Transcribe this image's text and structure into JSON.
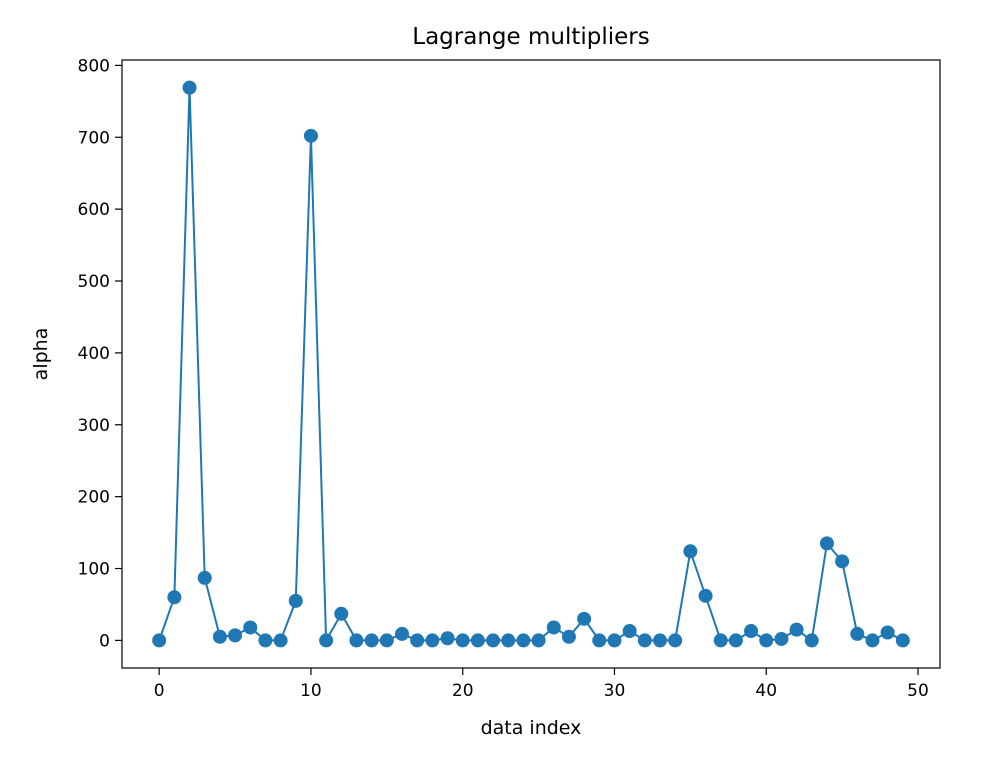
{
  "chart_data": {
    "type": "line",
    "title": "Lagrange multipliers",
    "xlabel": "data index",
    "ylabel": "alpha",
    "xlim": [
      -2.45,
      51.45
    ],
    "ylim": [
      -38.4,
      807.5
    ],
    "xticks": [
      0,
      10,
      20,
      30,
      40,
      50
    ],
    "yticks": [
      0,
      100,
      200,
      300,
      400,
      500,
      600,
      700,
      800
    ],
    "grid": false,
    "legend": "none",
    "series_color": "#1f77b4",
    "marker": "circle",
    "x": [
      0,
      1,
      2,
      3,
      4,
      5,
      6,
      7,
      8,
      9,
      10,
      11,
      12,
      13,
      14,
      15,
      16,
      17,
      18,
      19,
      20,
      21,
      22,
      23,
      24,
      25,
      26,
      27,
      28,
      29,
      30,
      31,
      32,
      33,
      34,
      35,
      36,
      37,
      38,
      39,
      40,
      41,
      42,
      43,
      44,
      45,
      46,
      47,
      48,
      49
    ],
    "values": [
      0,
      60,
      769,
      87,
      5,
      7,
      18,
      0,
      0,
      55,
      702,
      0,
      37,
      0,
      0,
      0,
      9,
      0,
      0,
      3,
      0,
      0,
      0,
      0,
      0,
      0,
      18,
      5,
      30,
      0,
      0,
      13,
      0,
      0,
      0,
      124,
      62,
      0,
      0,
      13,
      0,
      2,
      15,
      0,
      135,
      110,
      9,
      0,
      11,
      0
    ]
  }
}
